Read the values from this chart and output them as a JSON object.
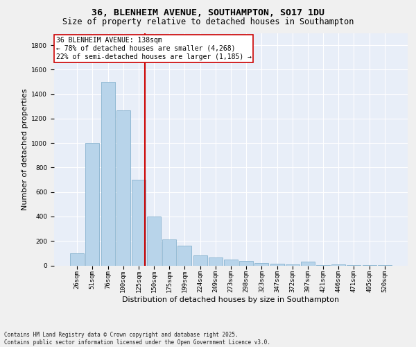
{
  "title_line1": "36, BLENHEIM AVENUE, SOUTHAMPTON, SO17 1DU",
  "title_line2": "Size of property relative to detached houses in Southampton",
  "xlabel": "Distribution of detached houses by size in Southampton",
  "ylabel": "Number of detached properties",
  "categories": [
    "26sqm",
    "51sqm",
    "76sqm",
    "100sqm",
    "125sqm",
    "150sqm",
    "175sqm",
    "199sqm",
    "224sqm",
    "249sqm",
    "273sqm",
    "298sqm",
    "323sqm",
    "347sqm",
    "372sqm",
    "397sqm",
    "421sqm",
    "446sqm",
    "471sqm",
    "495sqm",
    "520sqm"
  ],
  "values": [
    100,
    1000,
    1500,
    1270,
    700,
    400,
    210,
    160,
    80,
    65,
    50,
    35,
    20,
    15,
    10,
    30,
    5,
    10,
    5,
    5,
    5
  ],
  "bar_color": "#b8d4ea",
  "bar_edge_color": "#7aaac8",
  "vline_color": "#cc0000",
  "vline_pos": 4.43,
  "annotation_text": "36 BLENHEIM AVENUE: 138sqm\n← 78% of detached houses are smaller (4,268)\n22% of semi-detached houses are larger (1,185) →",
  "annotation_box_color": "#ffffff",
  "annotation_box_edge": "#cc0000",
  "ylim": [
    0,
    1900
  ],
  "yticks": [
    0,
    200,
    400,
    600,
    800,
    1000,
    1200,
    1400,
    1600,
    1800
  ],
  "bg_color": "#e8eef8",
  "grid_color": "#ffffff",
  "footnote": "Contains HM Land Registry data © Crown copyright and database right 2025.\nContains public sector information licensed under the Open Government Licence v3.0.",
  "title_fontsize": 9.5,
  "subtitle_fontsize": 8.5,
  "tick_fontsize": 6.5,
  "label_fontsize": 8,
  "annot_fontsize": 7,
  "footnote_fontsize": 5.5
}
